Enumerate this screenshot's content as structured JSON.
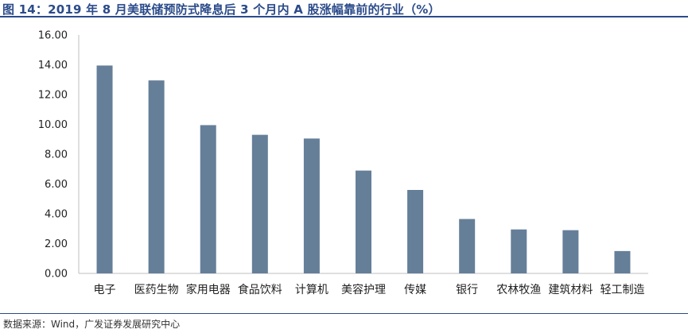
{
  "title": "图 14：2019 年 8 月美联储预防式降息后 3 个月内 A 股涨幅靠前的行业（%）",
  "source": "数据来源：Wind，广发证券发展研究中心",
  "colors": {
    "bar": "#657f99",
    "axis": "#bfbfbf",
    "title": "#2b4b8a"
  },
  "chart_data": {
    "type": "bar",
    "title": "图 14：2019 年 8 月美联储预防式降息后 3 个月内 A 股涨幅靠前的行业（%）",
    "categories": [
      "电子",
      "医药生物",
      "家用电器",
      "食品饮料",
      "计算机",
      "美容护理",
      "传媒",
      "银行",
      "农林牧渔",
      "建筑材料",
      "轻工制造"
    ],
    "values": [
      13.95,
      12.95,
      9.95,
      9.3,
      9.05,
      6.9,
      5.6,
      3.65,
      2.95,
      2.9,
      1.5
    ],
    "yticks": [
      "16.00",
      "14.00",
      "12.00",
      "10.00",
      "8.00",
      "6.00",
      "4.00",
      "2.00",
      "0.00"
    ],
    "ylim": [
      0,
      16
    ],
    "xlabel": "",
    "ylabel": "",
    "grid": false,
    "legend": "none"
  }
}
